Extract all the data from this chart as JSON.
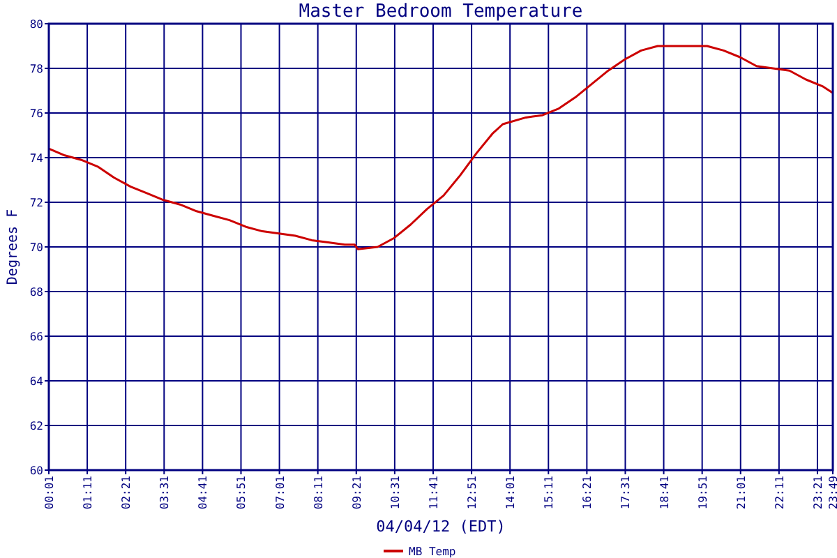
{
  "chart_data": {
    "type": "line",
    "title": "Master Bedroom Temperature",
    "xlabel": "04/04/12 (EDT)",
    "ylabel": "Degrees F",
    "x": [
      0.0167,
      0.5,
      1.0,
      1.5,
      2.0,
      2.5,
      3.0,
      3.5,
      4.0,
      4.5,
      5.0,
      5.5,
      6.0,
      6.5,
      7.0,
      7.5,
      8.0,
      8.5,
      9.0,
      9.3,
      9.4,
      10.0,
      10.5,
      11.0,
      11.5,
      12.0,
      12.5,
      13.0,
      13.5,
      13.8,
      14.5,
      15.0,
      15.5,
      16.0,
      16.5,
      17.0,
      17.5,
      18.0,
      18.5,
      20.0,
      20.5,
      21.0,
      21.5,
      22.0,
      22.5,
      23.0,
      23.5,
      23.8167
    ],
    "series": [
      {
        "name": "MB Temp",
        "color": "#cc0000",
        "values": [
          74.4,
          74.1,
          73.9,
          73.6,
          73.1,
          72.7,
          72.4,
          72.1,
          71.9,
          71.6,
          71.4,
          71.2,
          70.9,
          70.7,
          70.6,
          70.5,
          70.3,
          70.2,
          70.1,
          70.1,
          69.9,
          70.0,
          70.4,
          71.0,
          71.7,
          72.3,
          73.2,
          74.2,
          75.1,
          75.5,
          75.8,
          75.9,
          76.2,
          76.7,
          77.3,
          77.9,
          78.4,
          78.8,
          79.0,
          79.0,
          78.8,
          78.5,
          78.1,
          78.0,
          77.9,
          77.5,
          77.2,
          76.9
        ]
      }
    ],
    "xlim": [
      0.0167,
      23.8167
    ],
    "xticks": [
      {
        "value": 0.0167,
        "label": "00:01"
      },
      {
        "value": 1.1833,
        "label": "01:11"
      },
      {
        "value": 2.35,
        "label": "02:21"
      },
      {
        "value": 3.5167,
        "label": "03:31"
      },
      {
        "value": 4.6833,
        "label": "04:41"
      },
      {
        "value": 5.85,
        "label": "05:51"
      },
      {
        "value": 7.0167,
        "label": "07:01"
      },
      {
        "value": 8.1833,
        "label": "08:11"
      },
      {
        "value": 9.35,
        "label": "09:21"
      },
      {
        "value": 10.5167,
        "label": "10:31"
      },
      {
        "value": 11.6833,
        "label": "11:41"
      },
      {
        "value": 12.85,
        "label": "12:51"
      },
      {
        "value": 14.0167,
        "label": "14:01"
      },
      {
        "value": 15.1833,
        "label": "15:11"
      },
      {
        "value": 16.35,
        "label": "16:21"
      },
      {
        "value": 17.5167,
        "label": "17:31"
      },
      {
        "value": 18.6833,
        "label": "18:41"
      },
      {
        "value": 19.85,
        "label": "19:51"
      },
      {
        "value": 21.0167,
        "label": "21:01"
      },
      {
        "value": 22.1833,
        "label": "22:11"
      },
      {
        "value": 23.35,
        "label": "23:21"
      },
      {
        "value": 23.8167,
        "label": "23:49"
      }
    ],
    "ylim": [
      60,
      80
    ],
    "yticks": [
      60,
      62,
      64,
      66,
      68,
      70,
      72,
      74,
      76,
      78,
      80
    ],
    "grid": true,
    "legend": "bottom",
    "marker": "none",
    "line_style": "solid"
  }
}
